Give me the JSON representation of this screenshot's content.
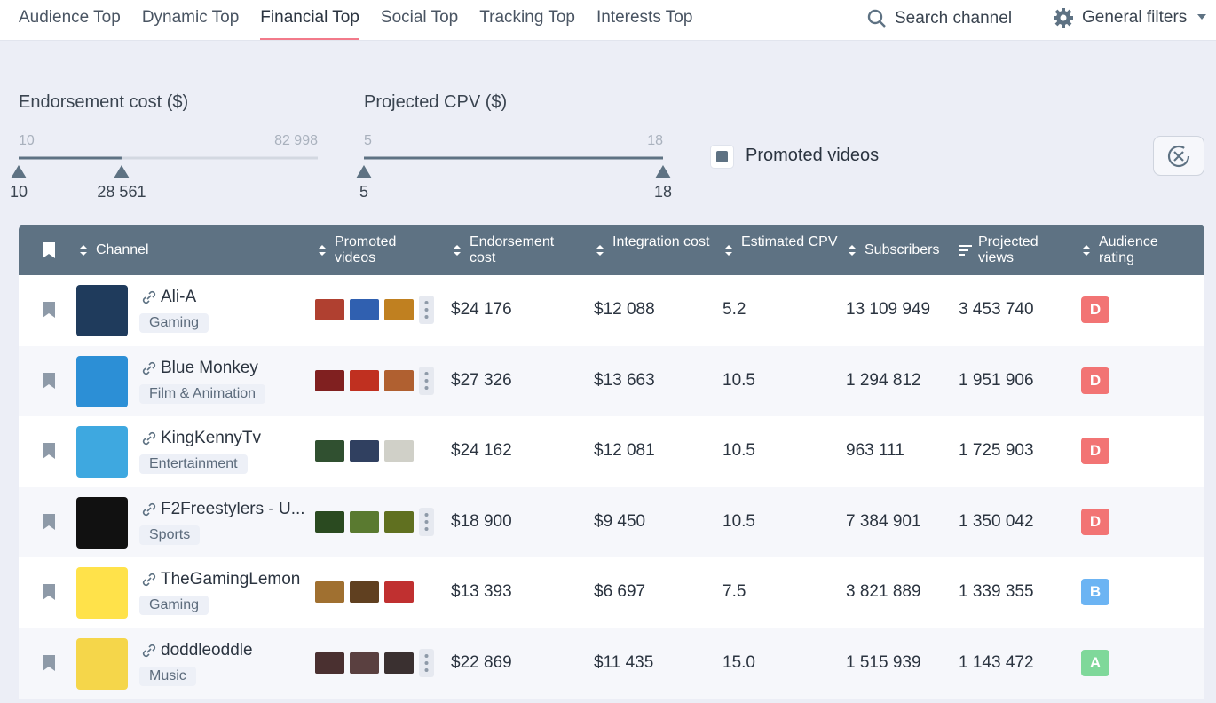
{
  "tabs": [
    "Audience Top",
    "Dynamic Top",
    "Financial Top",
    "Social Top",
    "Tracking Top",
    "Interests Top"
  ],
  "search": "Search channel",
  "filters": "General filters",
  "sliders": [
    {
      "label": "Endorsement cost ($)",
      "min": 10,
      "max": {
        "value": 82998,
        "label": "82 998"
      },
      "low": 10,
      "high": {
        "value": 28561,
        "label": "28 561"
      }
    },
    {
      "label": "Projected CPV ($)",
      "min": 5,
      "max": 18,
      "low": 5,
      "high": 18
    }
  ],
  "checkbox": "Promoted videos",
  "table": {
    "columns": [
      "Channel",
      "Promoted videos",
      "Endorsement cost",
      "Integration cost",
      "Estimated CPV",
      "Subscribers",
      "Projected views",
      "Audience rating"
    ],
    "rows": [
      {
        "name": "Ali-A",
        "category": "Gaming",
        "more": true,
        "cells": [
          "$24 176",
          "$12 088",
          "5.2",
          "13 109 949",
          "3 453 740"
        ],
        "rating": "D",
        "rating_color": "#f27474"
      },
      {
        "name": "Blue Monkey",
        "category": "Film & Animation",
        "more": true,
        "cells": [
          "$27 326",
          "$13 663",
          "10.5",
          "1 294 812",
          "1 951 906"
        ],
        "rating": "D",
        "rating_color": "#f27474"
      },
      {
        "name": "KingKennyTv",
        "category": "Entertainment",
        "more": false,
        "cells": [
          "$24 162",
          "$12 081",
          "10.5",
          "963 111",
          "1 725 903"
        ],
        "rating": "D",
        "rating_color": "#f27474"
      },
      {
        "name": "F2Freestylers - U...",
        "category": "Sports",
        "more": true,
        "cells": [
          "$18 900",
          "$9 450",
          "10.5",
          "7 384 901",
          "1 350 042"
        ],
        "rating": "D",
        "rating_color": "#f27474"
      },
      {
        "name": "TheGamingLemon",
        "category": "Gaming",
        "more": false,
        "cells": [
          "$13 393",
          "$6 697",
          "7.5",
          "3 821 889",
          "1 339 355"
        ],
        "rating": "B",
        "rating_color": "#6cb4f3"
      },
      {
        "name": "doddleoddle",
        "category": "Music",
        "more": true,
        "cells": [
          "$22 869",
          "$11 435",
          "15.0",
          "1 515 939",
          "1 143 472"
        ],
        "rating": "A",
        "rating_color": "#7fd89a"
      }
    ]
  }
}
